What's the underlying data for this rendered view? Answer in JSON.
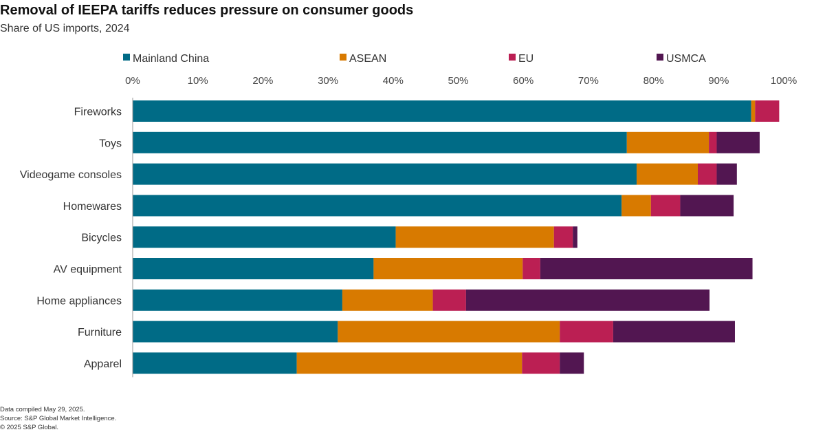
{
  "header": {
    "title": "Removal of IEEPA tariffs reduces pressure on consumer goods",
    "subtitle": "Share of US imports, 2024"
  },
  "footer": {
    "line1": "Data compiled May 29, 2025.",
    "line2": "Source: S&P Global Market Intelligence.",
    "line3": "© 2025 S&P Global."
  },
  "chart_data": {
    "type": "bar",
    "orientation": "horizontal",
    "stacked": true,
    "title": "Removal of IEEPA tariffs reduces pressure on consumer goods",
    "subtitle": "Share of US imports, 2024",
    "categories": [
      "Fireworks",
      "Toys",
      "Videogame consoles",
      "Homewares",
      "Bicycles",
      "AV equipment",
      "Home appliances",
      "Furniture",
      "Apparel"
    ],
    "series": [
      {
        "name": "Mainland China",
        "color": "#006b86",
        "values": [
          95.0,
          75.9,
          77.4,
          75.1,
          40.4,
          37.0,
          32.2,
          31.5,
          25.2
        ]
      },
      {
        "name": "ASEAN",
        "color": "#d87a00",
        "values": [
          0.6,
          12.6,
          9.4,
          4.5,
          24.3,
          22.9,
          13.9,
          34.1,
          34.6
        ]
      },
      {
        "name": "EU",
        "color": "#bb1f53",
        "values": [
          3.7,
          1.2,
          2.9,
          4.5,
          2.9,
          2.7,
          5.1,
          8.2,
          5.8
        ]
      },
      {
        "name": "USMCA",
        "color": "#521651",
        "values": [
          0.0,
          6.6,
          3.1,
          8.2,
          0.7,
          32.6,
          37.4,
          18.7,
          3.7
        ]
      }
    ],
    "xlim": [
      0,
      100
    ],
    "xticks": [
      "0%",
      "10%",
      "20%",
      "30%",
      "40%",
      "50%",
      "60%",
      "70%",
      "80%",
      "90%",
      "100%"
    ],
    "legend_position": "top",
    "xlabel": "",
    "ylabel": ""
  }
}
